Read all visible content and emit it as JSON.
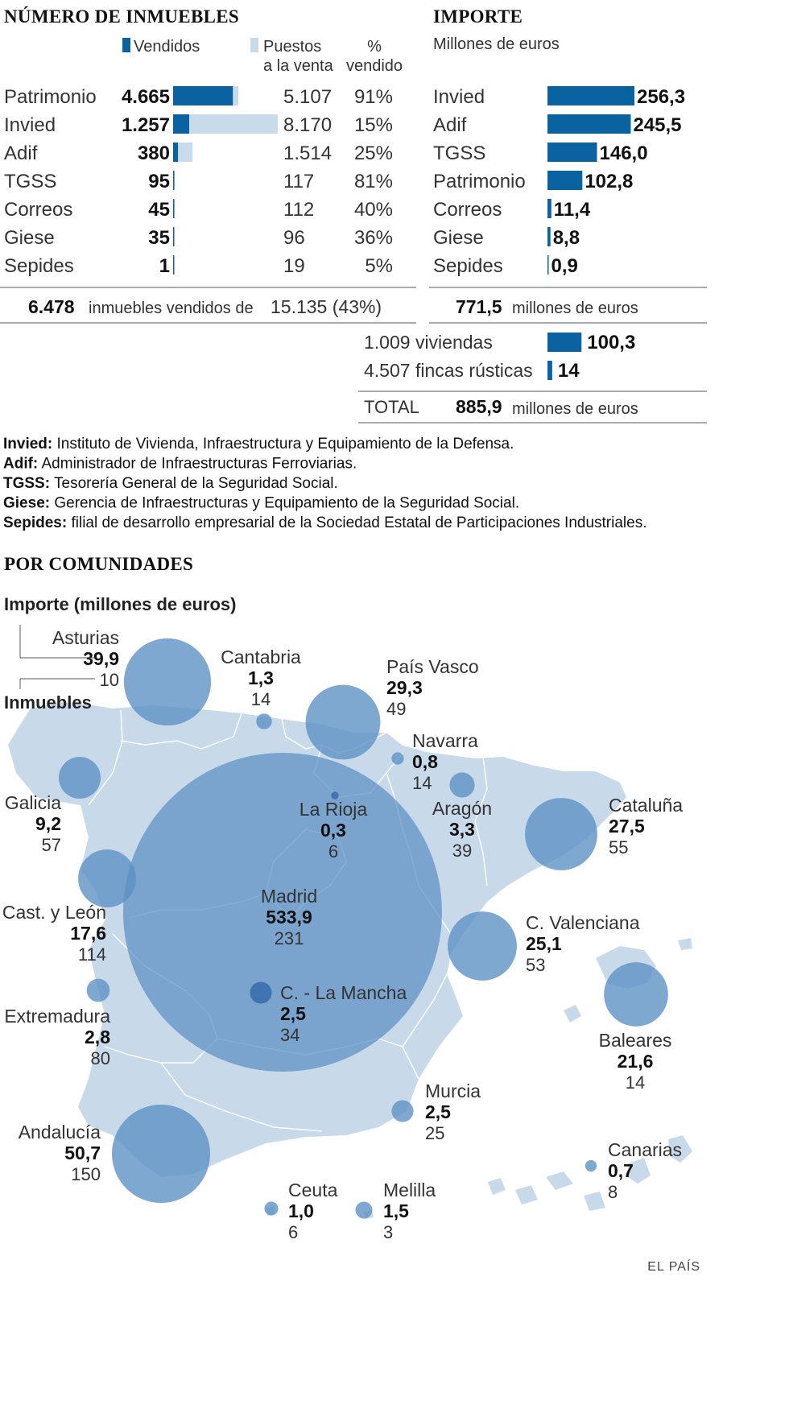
{
  "colors": {
    "sold": "#0b62a0",
    "onsale": "#c7dbeb",
    "land": "#c8d9ea",
    "bubble": "#5b8fc3",
    "bubble_dark": "#2f67a8"
  },
  "left_panel": {
    "title": "NÚMERO DE INMUEBLES",
    "legend": {
      "sold": "Vendidos",
      "onsale_l1": "Puestos",
      "onsale_l2": "a la venta",
      "pct_l1": "%",
      "pct_l2": "vendido"
    }
  },
  "right_panel": {
    "title": "IMPORTE",
    "subtitle": "Millones de euros"
  },
  "summary": {
    "left_total": "6.478",
    "left_text": "inmuebles vendidos de",
    "left_rest": "15.135 (43%)",
    "right_total": "771,5",
    "right_text": "millones de euros",
    "total_label": "TOTAL",
    "total_value": "885,9",
    "total_text": "millones de euros"
  },
  "glossary": [
    {
      "key": "Invied:",
      "text": "Instituto de Vivienda, Infraestructura y Equipamiento de la Defensa."
    },
    {
      "key": "Adif:",
      "text": "Administrador de Infraestructuras Ferroviarias."
    },
    {
      "key": "TGSS:",
      "text": "Tesorería General de la Seguridad Social."
    },
    {
      "key": "Giese:",
      "text": "Gerencia de Infraestructuras y Equipamiento de la Seguridad Social."
    },
    {
      "key": "Sepides:",
      "text": "filial de desarrollo empresarial de la Sociedad Estatal de Participaciones Industriales."
    }
  ],
  "map_section": {
    "title": "POR COMUNIDADES",
    "legend_title": "Importe (millones de euros)",
    "legend_count_label": "Inmuebles"
  },
  "credit": "EL PAÍS",
  "chart_data": [
    {
      "type": "bar",
      "title": "NÚMERO DE INMUEBLES",
      "categories": [
        "Patrimonio",
        "Invied",
        "Adif",
        "TGSS",
        "Correos",
        "Giese",
        "Sepides"
      ],
      "series": [
        {
          "name": "Vendidos",
          "values": [
            4665,
            1257,
            380,
            95,
            45,
            35,
            1
          ],
          "labels": [
            "4.665",
            "1.257",
            "380",
            "95",
            "45",
            "35",
            "1"
          ]
        },
        {
          "name": "Puestos a la venta",
          "values": [
            5107,
            8170,
            1514,
            117,
            112,
            96,
            19
          ],
          "labels": [
            "5.107",
            "8.170",
            "1.514",
            "117",
            "112",
            "96",
            "19"
          ]
        }
      ],
      "pct_sold": [
        "91%",
        "15%",
        "25%",
        "81%",
        "40%",
        "36%",
        "5%"
      ]
    },
    {
      "type": "bar",
      "title": "IMPORTE",
      "ylabel": "Millones de euros",
      "categories": [
        "Invied",
        "Adif",
        "TGSS",
        "Patrimonio",
        "Correos",
        "Giese",
        "Sepides"
      ],
      "values": [
        256.3,
        245.5,
        146.0,
        102.8,
        11.4,
        8.8,
        0.9
      ],
      "labels": [
        "256,3",
        "245,5",
        "146,0",
        "102,8",
        "11,4",
        "8,8",
        "0,9"
      ]
    },
    {
      "type": "bar",
      "categories": [
        "1.009 viviendas",
        "4.507 fincas rústicas"
      ],
      "values": [
        100.3,
        14
      ],
      "labels": [
        "100,3",
        "14"
      ]
    },
    {
      "type": "scatter",
      "title": "POR COMUNIDADES",
      "points": [
        {
          "name": "Asturias",
          "value": 39.9,
          "value_label": "39,9",
          "count": "10"
        },
        {
          "name": "Cantabria",
          "value": 1.3,
          "value_label": "1,3",
          "count": "14"
        },
        {
          "name": "País Vasco",
          "value": 29.3,
          "value_label": "29,3",
          "count": "49"
        },
        {
          "name": "Navarra",
          "value": 0.8,
          "value_label": "0,8",
          "count": "14"
        },
        {
          "name": "Galicia",
          "value": 9.2,
          "value_label": "9,2",
          "count": "57"
        },
        {
          "name": "La Rioja",
          "value": 0.3,
          "value_label": "0,3",
          "count": "6"
        },
        {
          "name": "Aragón",
          "value": 3.3,
          "value_label": "3,3",
          "count": "39"
        },
        {
          "name": "Cataluña",
          "value": 27.5,
          "value_label": "27,5",
          "count": "55"
        },
        {
          "name": "Madrid",
          "value": 533.9,
          "value_label": "533,9",
          "count": "231"
        },
        {
          "name": "Cast. y León",
          "value": 17.6,
          "value_label": "17,6",
          "count": "114"
        },
        {
          "name": "C. Valenciana",
          "value": 25.1,
          "value_label": "25,1",
          "count": "53"
        },
        {
          "name": "C. - La Mancha",
          "value": 2.5,
          "value_label": "2,5",
          "count": "34"
        },
        {
          "name": "Extremadura",
          "value": 2.8,
          "value_label": "2,8",
          "count": "80"
        },
        {
          "name": "Baleares",
          "value": 21.6,
          "value_label": "21,6",
          "count": "14"
        },
        {
          "name": "Murcia",
          "value": 2.5,
          "value_label": "2,5",
          "count": "25"
        },
        {
          "name": "Andalucía",
          "value": 50.7,
          "value_label": "50,7",
          "count": "150"
        },
        {
          "name": "Canarias",
          "value": 0.7,
          "value_label": "0,7",
          "count": "8"
        },
        {
          "name": "Ceuta",
          "value": 1.0,
          "value_label": "1,0",
          "count": "6"
        },
        {
          "name": "Melilla",
          "value": 1.5,
          "value_label": "1,5",
          "count": "3"
        }
      ]
    }
  ]
}
